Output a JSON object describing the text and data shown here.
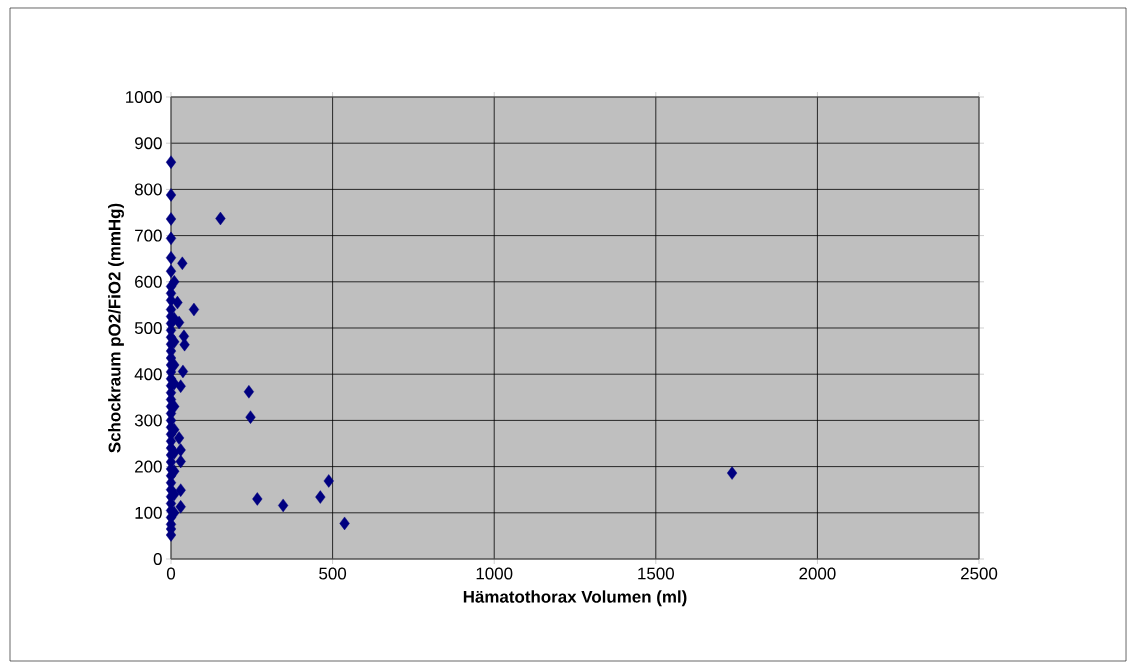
{
  "chart_data": {
    "type": "scatter",
    "xlabel": "Hämatothorax Volumen (ml)",
    "ylabel": "Schockraum pO2/FiO2 (mmHg)",
    "xlim": [
      0,
      2500
    ],
    "ylim": [
      0,
      1000
    ],
    "xticks": [
      0,
      500,
      1000,
      1500,
      2000,
      2500
    ],
    "yticks": [
      0,
      100,
      200,
      300,
      400,
      500,
      600,
      700,
      800,
      900,
      1000
    ],
    "grid": true,
    "marker": "diamond",
    "series": [
      {
        "color": "#000080",
        "x": [
          0,
          0,
          0,
          0,
          0,
          0,
          0,
          0,
          0,
          0,
          0,
          0,
          0,
          0,
          0,
          0,
          0,
          0,
          0,
          0,
          0,
          0,
          0,
          0,
          0,
          0,
          0,
          0,
          0,
          0,
          0,
          0,
          0,
          0,
          0,
          0,
          0,
          0,
          0,
          0,
          0,
          0,
          0,
          10,
          10,
          10,
          10,
          10,
          10,
          10,
          10,
          10,
          10,
          10,
          35,
          71,
          20,
          25,
          40,
          42,
          37,
          30,
          25,
          30,
          30,
          30,
          30,
          153,
          241,
          246,
          267,
          347,
          462,
          488,
          537,
          1736
        ],
        "values": [
          859,
          788,
          736,
          694,
          652,
          623,
          590,
          575,
          560,
          540,
          525,
          510,
          495,
          480,
          465,
          450,
          435,
          420,
          405,
          390,
          375,
          360,
          345,
          330,
          315,
          300,
          285,
          270,
          255,
          240,
          225,
          210,
          195,
          180,
          165,
          150,
          135,
          120,
          105,
          90,
          75,
          65,
          52,
          600,
          520,
          470,
          420,
          380,
          330,
          280,
          230,
          190,
          140,
          100,
          640,
          540,
          555,
          512,
          482,
          464,
          406,
          374,
          262,
          236,
          211,
          149,
          113,
          737,
          362,
          307,
          130,
          116,
          134,
          169,
          77,
          186
        ]
      }
    ]
  }
}
